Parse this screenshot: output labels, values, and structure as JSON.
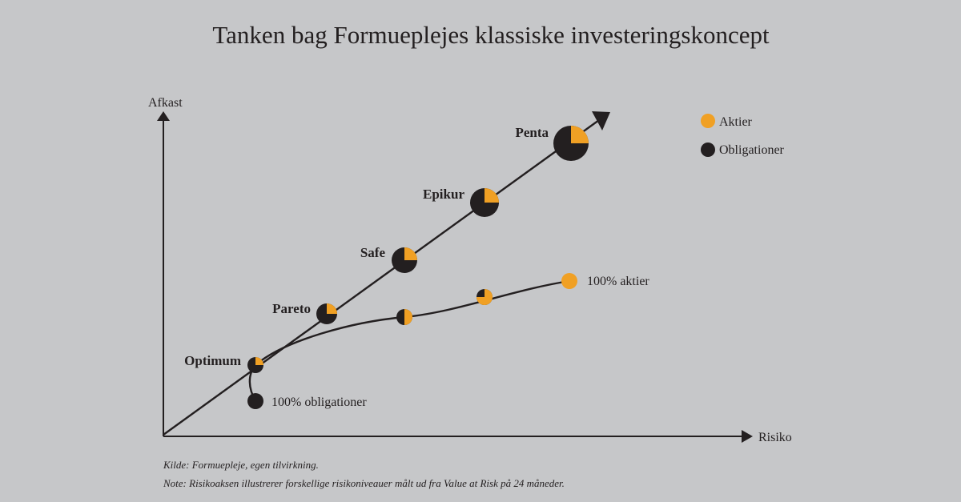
{
  "title": "Tanken bag Formueplejes klassiske investeringskoncept",
  "axes": {
    "y_label": "Afkast",
    "x_label": "Risiko"
  },
  "legend": {
    "stocks_label": "Aktier",
    "bonds_label": "Obligationer"
  },
  "colors": {
    "stocks": "#f0a024",
    "bonds": "#231f20",
    "background": "#c6c7c9"
  },
  "funds": [
    {
      "name": "Optimum",
      "stock_share": 0.25
    },
    {
      "name": "Pareto",
      "stock_share": 0.25
    },
    {
      "name": "Safe",
      "stock_share": 0.25
    },
    {
      "name": "Epikur",
      "stock_share": 0.25
    },
    {
      "name": "Penta",
      "stock_share": 0.25
    }
  ],
  "curve_points": [
    {
      "label": "",
      "stock_share": 0.5
    },
    {
      "label": "",
      "stock_share": 0.75
    },
    {
      "label": "100% aktier",
      "stock_share": 1.0
    }
  ],
  "bonds_point": {
    "label": "100% obligationer",
    "stock_share": 0
  },
  "notes": {
    "source": "Kilde: Formuepleje, egen tilvirkning.",
    "note": "Note: Risikoaksen illustrerer forskellige risikoniveauer målt ud fra Value at Risk på 24 måneder."
  }
}
